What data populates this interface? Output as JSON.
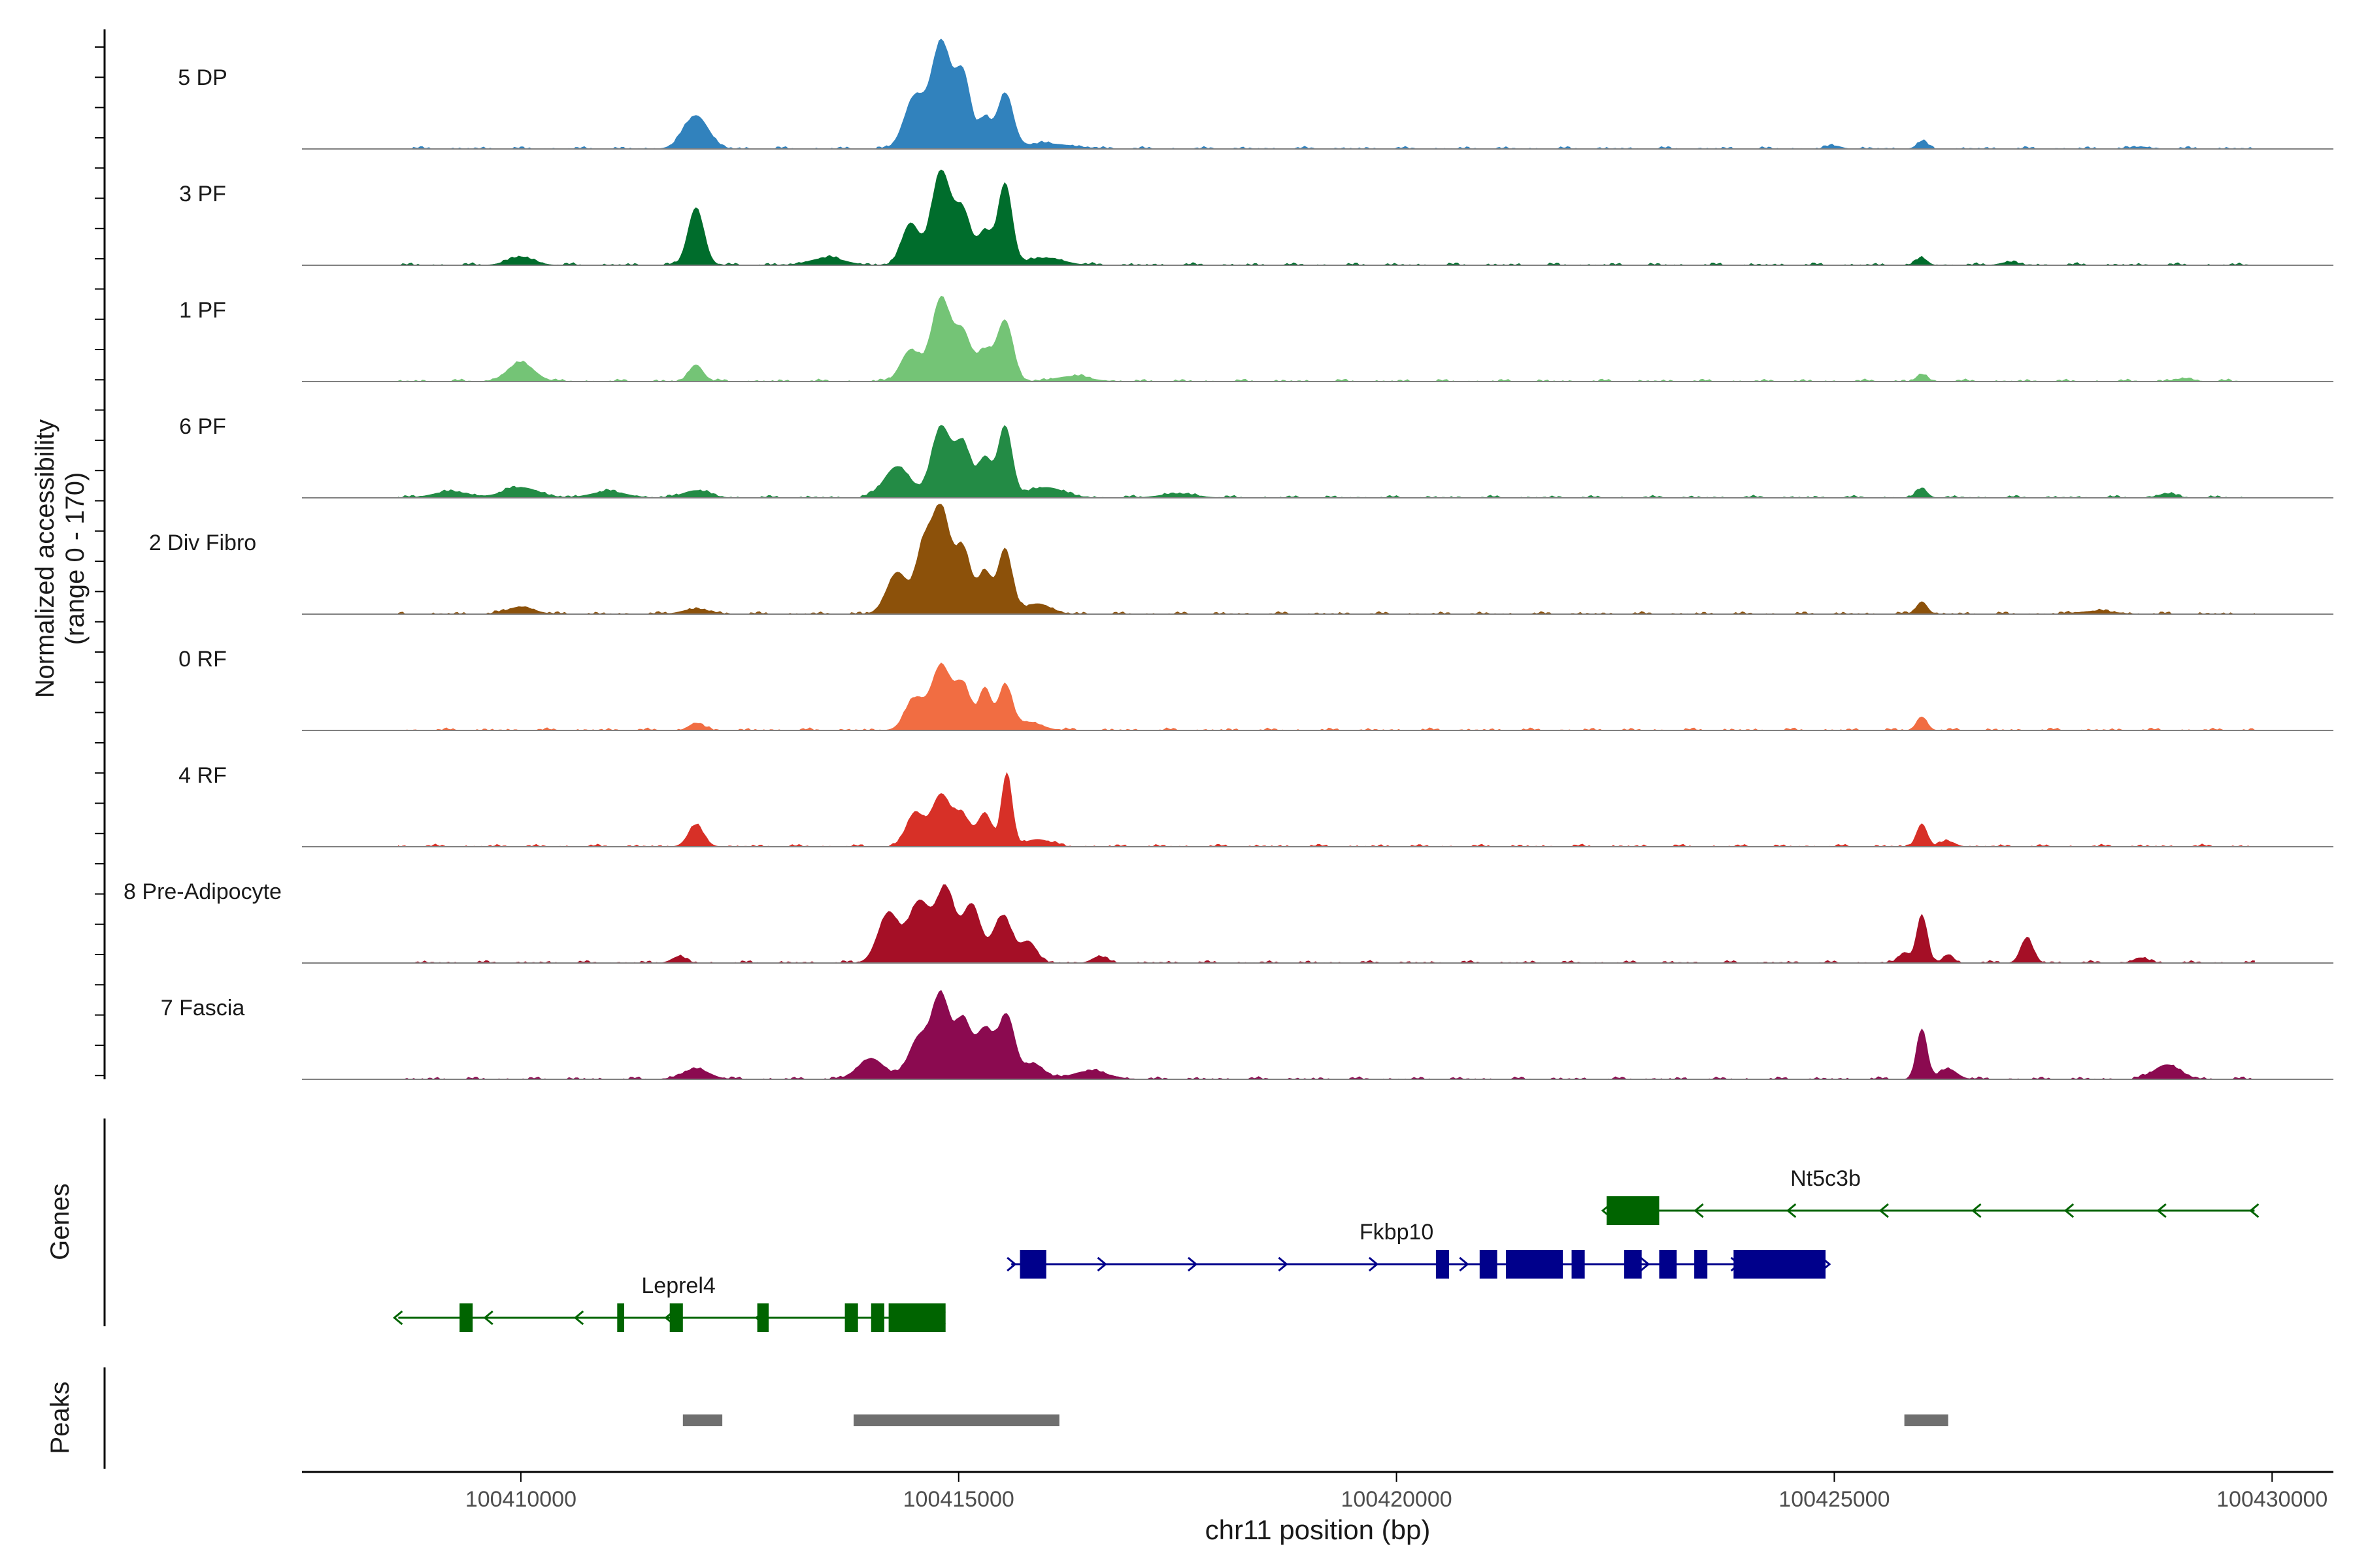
{
  "chart_data": {
    "type": "area",
    "title": "",
    "ylabel_line1": "Normalized accessibility",
    "ylabel_line2": "(range 0 - 170)",
    "xlabel": "chr11 position (bp)",
    "xlim": [
      100407500,
      100430700
    ],
    "xticks": [
      "100410000",
      "100415000",
      "100420000",
      "100425000",
      "100430000"
    ],
    "xtick_values": [
      100410000,
      100415000,
      100420000,
      100425000,
      100430000
    ],
    "data_start": 100408600,
    "data_end": 100429800,
    "series": [
      {
        "name": "5 DP",
        "color": "#3182bd",
        "peaks": [
          [
            100412000,
            0.32,
            140
          ],
          [
            100414500,
            0.5,
            120
          ],
          [
            100414800,
            1.0,
            110
          ],
          [
            100415050,
            0.7,
            90
          ],
          [
            100415300,
            0.28,
            70
          ],
          [
            100415530,
            0.52,
            90
          ],
          [
            100416000,
            0.05,
            300
          ],
          [
            100426000,
            0.07,
            60
          ],
          [
            100425000,
            0.03,
            80
          ],
          [
            100428500,
            0.02,
            100
          ]
        ]
      },
      {
        "name": "3 PF",
        "color": "#006d2c",
        "peaks": [
          [
            100410000,
            0.08,
            150
          ],
          [
            100412000,
            0.55,
            90
          ],
          [
            100413500,
            0.07,
            200
          ],
          [
            100414450,
            0.4,
            100
          ],
          [
            100414800,
            0.9,
            110
          ],
          [
            100415050,
            0.5,
            90
          ],
          [
            100415300,
            0.32,
            80
          ],
          [
            100415530,
            0.78,
            80
          ],
          [
            100416000,
            0.07,
            200
          ],
          [
            100426000,
            0.07,
            60
          ],
          [
            100427000,
            0.03,
            100
          ]
        ]
      },
      {
        "name": "1 PF",
        "color": "#74c476",
        "peaks": [
          [
            100410000,
            0.18,
            150
          ],
          [
            100412000,
            0.16,
            80
          ],
          [
            100414450,
            0.3,
            110
          ],
          [
            100414800,
            0.8,
            110
          ],
          [
            100415050,
            0.45,
            90
          ],
          [
            100415300,
            0.28,
            90
          ],
          [
            100415530,
            0.58,
            90
          ],
          [
            100416300,
            0.05,
            200
          ],
          [
            100426000,
            0.07,
            60
          ],
          [
            100429000,
            0.03,
            100
          ]
        ]
      },
      {
        "name": "6 PF",
        "color": "#238b45",
        "peaks": [
          [
            100409200,
            0.06,
            200
          ],
          [
            100410000,
            0.1,
            200
          ],
          [
            100411000,
            0.06,
            200
          ],
          [
            100412000,
            0.07,
            150
          ],
          [
            100414300,
            0.3,
            150
          ],
          [
            100414800,
            0.68,
            110
          ],
          [
            100415050,
            0.5,
            90
          ],
          [
            100415300,
            0.38,
            80
          ],
          [
            100415530,
            0.68,
            80
          ],
          [
            100416000,
            0.1,
            200
          ],
          [
            100417500,
            0.04,
            200
          ],
          [
            100426000,
            0.09,
            60
          ],
          [
            100428800,
            0.04,
            100
          ]
        ]
      },
      {
        "name": "2 Div Fibro",
        "color": "#8c510a",
        "peaks": [
          [
            100410000,
            0.07,
            150
          ],
          [
            100412000,
            0.05,
            150
          ],
          [
            100414300,
            0.4,
            120
          ],
          [
            100414600,
            0.6,
            90
          ],
          [
            100414800,
            1.0,
            100
          ],
          [
            100415050,
            0.62,
            90
          ],
          [
            100415300,
            0.4,
            80
          ],
          [
            100415530,
            0.62,
            80
          ],
          [
            100415900,
            0.1,
            150
          ],
          [
            100426000,
            0.12,
            60
          ],
          [
            100428000,
            0.03,
            200
          ]
        ]
      },
      {
        "name": "0 RF",
        "color": "#f16d42",
        "peaks": [
          [
            100412000,
            0.07,
            80
          ],
          [
            100414500,
            0.3,
            110
          ],
          [
            100414800,
            0.62,
            110
          ],
          [
            100415050,
            0.42,
            90
          ],
          [
            100415300,
            0.4,
            70
          ],
          [
            100415530,
            0.42,
            80
          ],
          [
            100415800,
            0.08,
            150
          ],
          [
            100426000,
            0.13,
            60
          ]
        ]
      },
      {
        "name": "4 RF",
        "color": "#d73027",
        "peaks": [
          [
            100412000,
            0.2,
            90
          ],
          [
            100414500,
            0.32,
            100
          ],
          [
            100414800,
            0.5,
            110
          ],
          [
            100415050,
            0.28,
            90
          ],
          [
            100415300,
            0.32,
            80
          ],
          [
            100415550,
            0.7,
            60
          ],
          [
            100415900,
            0.07,
            150
          ],
          [
            100426000,
            0.22,
            60
          ],
          [
            100426300,
            0.05,
            80
          ]
        ]
      },
      {
        "name": "8 Pre-Adipocyte",
        "color": "#a50f26",
        "peaks": [
          [
            100414200,
            0.48,
            120
          ],
          [
            100414550,
            0.58,
            120
          ],
          [
            100414850,
            0.7,
            110
          ],
          [
            100415150,
            0.55,
            100
          ],
          [
            100415500,
            0.45,
            110
          ],
          [
            100415800,
            0.2,
            90
          ],
          [
            100411800,
            0.06,
            80
          ],
          [
            100416600,
            0.06,
            80
          ],
          [
            100425800,
            0.1,
            60
          ],
          [
            100426000,
            0.46,
            60
          ],
          [
            100426300,
            0.08,
            60
          ],
          [
            100427200,
            0.24,
            70
          ],
          [
            100428500,
            0.05,
            80
          ]
        ]
      },
      {
        "name": "7 Fascia",
        "color": "#8b0a50",
        "peaks": [
          [
            100412000,
            0.1,
            150
          ],
          [
            100414000,
            0.2,
            150
          ],
          [
            100414550,
            0.4,
            120
          ],
          [
            100414800,
            0.78,
            100
          ],
          [
            100415050,
            0.55,
            90
          ],
          [
            100415300,
            0.48,
            100
          ],
          [
            100415550,
            0.6,
            90
          ],
          [
            100415850,
            0.15,
            120
          ],
          [
            100416500,
            0.08,
            200
          ],
          [
            100426000,
            0.48,
            60
          ],
          [
            100426300,
            0.1,
            100
          ],
          [
            100428800,
            0.14,
            150
          ]
        ]
      }
    ],
    "genes_label": "Genes",
    "peaks_label": "Peaks",
    "genes": [
      {
        "name": "Nt5c3b",
        "color": "#006400",
        "strand": "-",
        "start": 100422400,
        "end": 100429800,
        "row": 0,
        "exons": [
          [
            100422400,
            100423000
          ]
        ]
      },
      {
        "name": "Fkbp10",
        "color": "#00008b",
        "strand": "+",
        "start": 100415600,
        "end": 100424900,
        "row": 1,
        "exons": [
          [
            100415700,
            100416000
          ],
          [
            100420450,
            100420600
          ],
          [
            100420950,
            100421150
          ],
          [
            100421250,
            100421900
          ],
          [
            100422000,
            100422150
          ],
          [
            100422600,
            100422800
          ],
          [
            100423000,
            100423200
          ],
          [
            100423400,
            100423550
          ],
          [
            100423850,
            100424900
          ]
        ]
      },
      {
        "name": "Leprel4",
        "color": "#006400",
        "strand": "-",
        "start": 100408600,
        "end": 100414800,
        "row": 2,
        "exons": [
          [
            100409300,
            100409450
          ],
          [
            100411100,
            100411180
          ],
          [
            100411700,
            100411850
          ],
          [
            100412700,
            100412830
          ],
          [
            100413700,
            100413850
          ],
          [
            100414000,
            100414150
          ],
          [
            100414200,
            100414850
          ]
        ]
      }
    ],
    "peak_regions": [
      [
        100411850,
        100412300
      ],
      [
        100413800,
        100416150
      ],
      [
        100425800,
        100426300
      ]
    ]
  }
}
